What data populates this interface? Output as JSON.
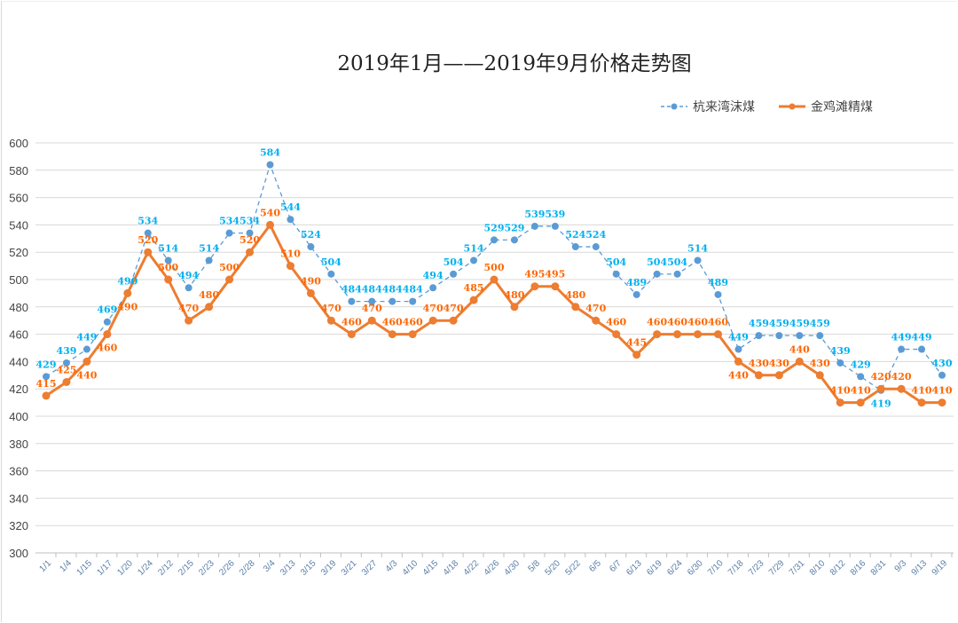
{
  "chart_data": {
    "type": "line",
    "title": "2019年1月——2019年9月价格走势图",
    "ylim": [
      300,
      600
    ],
    "yticks": [
      300,
      320,
      340,
      360,
      380,
      400,
      420,
      440,
      460,
      480,
      500,
      520,
      540,
      560,
      580,
      600
    ],
    "grid": true,
    "legend_position": "top-right",
    "categories": [
      "1/1",
      "1/4",
      "1/15",
      "1/17",
      "1/20",
      "1/24",
      "2/12",
      "2/15",
      "2/23",
      "2/26",
      "2/28",
      "3/4",
      "3/13",
      "3/15",
      "3/19",
      "3/21",
      "3/27",
      "4/3",
      "4/10",
      "4/15",
      "4/18",
      "4/22",
      "4/26",
      "4/30",
      "5/8",
      "5/20",
      "5/22",
      "6/5",
      "6/7",
      "6/13",
      "6/19",
      "6/24",
      "6/30",
      "7/10",
      "7/18",
      "7/23",
      "7/29",
      "7/31",
      "8/10",
      "8/12",
      "8/16",
      "8/31",
      "9/3",
      "9/13",
      "9/19"
    ],
    "series": [
      {
        "name": "杭来湾沫煤",
        "color": "#5B9BD5",
        "label_color": "#00B0F0",
        "style": "dashed",
        "values": [
          429,
          439,
          449,
          469,
          490,
          534,
          514,
          494,
          514,
          534,
          534,
          584,
          544,
          524,
          504,
          484,
          484,
          484,
          484,
          494,
          504,
          514,
          529,
          529,
          539,
          539,
          524,
          524,
          504,
          489,
          504,
          504,
          514,
          489,
          449,
          459,
          459,
          459,
          459,
          439,
          429,
          419,
          449,
          449,
          430
        ]
      },
      {
        "name": "金鸡滩精煤",
        "color": "#ED7D31",
        "label_color": "#FF6600",
        "style": "solid",
        "values": [
          415,
          425,
          440,
          460,
          490,
          520,
          500,
          470,
          480,
          500,
          520,
          540,
          510,
          490,
          470,
          460,
          470,
          460,
          460,
          470,
          470,
          485,
          500,
          480,
          495,
          495,
          480,
          470,
          460,
          445,
          460,
          460,
          460,
          460,
          440,
          430,
          430,
          440,
          430,
          410,
          410,
          420,
          420,
          410,
          410
        ]
      }
    ]
  }
}
